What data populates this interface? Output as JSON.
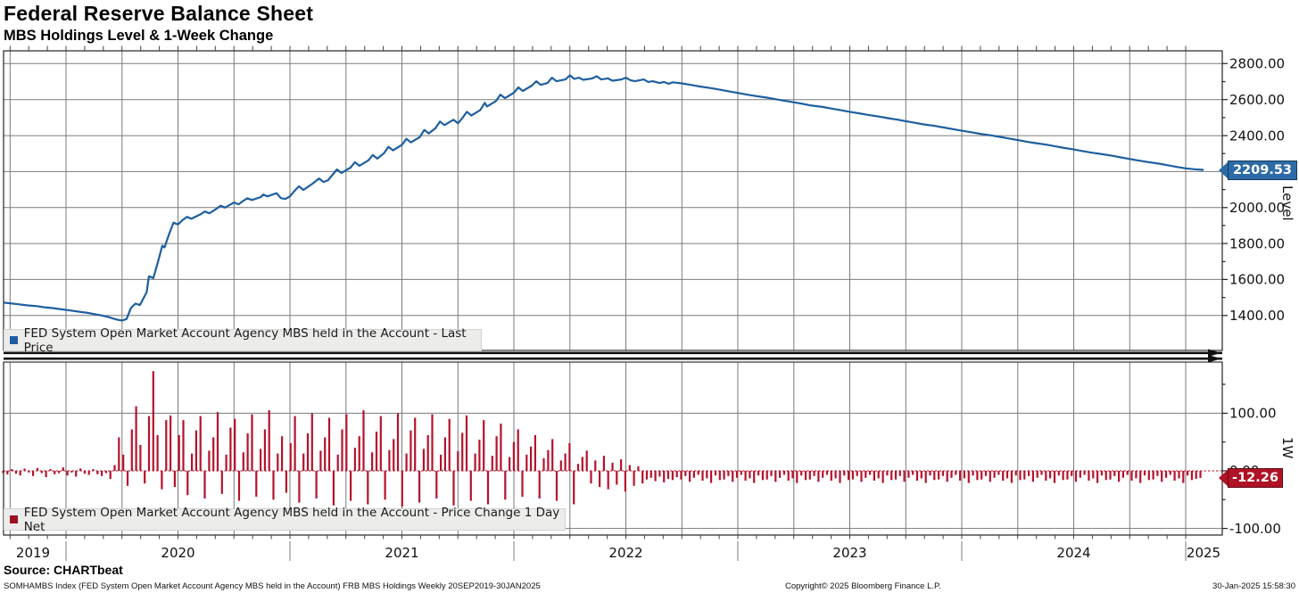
{
  "header": {
    "title": "Federal Reserve Balance Sheet",
    "subtitle": "MBS Holdings Level & 1-Week Change"
  },
  "footer": {
    "source": "Source: CHARTbeat",
    "description": "SOMHAMBS Index (FED System Open Market Account Agency MBS held in the Account) FRB MBS Holdings  Weekly 20SEP2019-30JAN2025",
    "copyright": "Copyright© 2025 Bloomberg Finance L.P.",
    "timestamp": "30-Jan-2025 15:58:30"
  },
  "colors": {
    "line_blue": "#1d5f9f",
    "tag_blue": "#2d6ba6",
    "tag_blue_border": "#123a5c",
    "bar_red": "#b5122b",
    "tag_red": "#b01226",
    "tag_red_border": "#5f0812",
    "grid": "#7a7a7a",
    "axis": "#222222",
    "legend_bg": "#ececeb"
  },
  "xaxis": {
    "labels": [
      "2019",
      "2020",
      "2021",
      "2022",
      "2023",
      "2024",
      "2025"
    ],
    "start_year": 2019.719,
    "end_year": 2025.08
  },
  "chart_data": [
    {
      "type": "line",
      "panel": "level",
      "axis_label": "Level",
      "legend": "FED System Open Market Account Agency MBS held in the Account - Last Price",
      "line_color": "#1d5f9f",
      "last": {
        "label": "2209.53",
        "value": 2209.53
      },
      "ylim": [
        1205,
        2872
      ],
      "yticks": [
        {
          "value": 2800,
          "label": "2800.00"
        },
        {
          "value": 2600,
          "label": "2600.00"
        },
        {
          "value": 2400,
          "label": "2400.00"
        },
        {
          "value": 2200,
          "label": ""
        },
        {
          "value": 2000,
          "label": "2000.00"
        },
        {
          "value": 1800,
          "label": "1800.00"
        },
        {
          "value": 1600,
          "label": "1600.00"
        },
        {
          "value": 1400,
          "label": "1400.00"
        }
      ],
      "points": [
        [
          2019.72,
          1472
        ],
        [
          2019.75,
          1468
        ],
        [
          2019.79,
          1462
        ],
        [
          2019.83,
          1456
        ],
        [
          2019.87,
          1452
        ],
        [
          2019.9,
          1446
        ],
        [
          2019.94,
          1441
        ],
        [
          2019.98,
          1434
        ],
        [
          2020.02,
          1428
        ],
        [
          2020.06,
          1421
        ],
        [
          2020.1,
          1414
        ],
        [
          2020.13,
          1407
        ],
        [
          2020.16,
          1400
        ],
        [
          2020.19,
          1391
        ],
        [
          2020.21,
          1383
        ],
        [
          2020.23,
          1376
        ],
        [
          2020.25,
          1372
        ],
        [
          2020.27,
          1380
        ],
        [
          2020.29,
          1442
        ],
        [
          2020.31,
          1466
        ],
        [
          2020.33,
          1458
        ],
        [
          2020.36,
          1530
        ],
        [
          2020.37,
          1618
        ],
        [
          2020.39,
          1608
        ],
        [
          2020.41,
          1695
        ],
        [
          2020.43,
          1788
        ],
        [
          2020.44,
          1778
        ],
        [
          2020.46,
          1852
        ],
        [
          2020.48,
          1916
        ],
        [
          2020.5,
          1906
        ],
        [
          2020.52,
          1930
        ],
        [
          2020.54,
          1948
        ],
        [
          2020.56,
          1938
        ],
        [
          2020.6,
          1962
        ],
        [
          2020.62,
          1978
        ],
        [
          2020.64,
          1968
        ],
        [
          2020.67,
          1992
        ],
        [
          2020.69,
          2010
        ],
        [
          2020.71,
          2000
        ],
        [
          2020.75,
          2028
        ],
        [
          2020.77,
          2018
        ],
        [
          2020.79,
          2036
        ],
        [
          2020.81,
          2052
        ],
        [
          2020.83,
          2042
        ],
        [
          2020.87,
          2058
        ],
        [
          2020.88,
          2072
        ],
        [
          2020.9,
          2062
        ],
        [
          2020.94,
          2080
        ],
        [
          2020.96,
          2052
        ],
        [
          2020.98,
          2048
        ],
        [
          2021.0,
          2062
        ],
        [
          2021.02,
          2092
        ],
        [
          2021.04,
          2118
        ],
        [
          2021.06,
          2098
        ],
        [
          2021.1,
          2132
        ],
        [
          2021.13,
          2162
        ],
        [
          2021.15,
          2142
        ],
        [
          2021.17,
          2152
        ],
        [
          2021.19,
          2182
        ],
        [
          2021.21,
          2212
        ],
        [
          2021.23,
          2192
        ],
        [
          2021.27,
          2222
        ],
        [
          2021.29,
          2252
        ],
        [
          2021.31,
          2232
        ],
        [
          2021.35,
          2262
        ],
        [
          2021.37,
          2292
        ],
        [
          2021.39,
          2272
        ],
        [
          2021.42,
          2302
        ],
        [
          2021.44,
          2338
        ],
        [
          2021.46,
          2318
        ],
        [
          2021.5,
          2348
        ],
        [
          2021.52,
          2382
        ],
        [
          2021.54,
          2362
        ],
        [
          2021.58,
          2392
        ],
        [
          2021.6,
          2432
        ],
        [
          2021.62,
          2412
        ],
        [
          2021.65,
          2442
        ],
        [
          2021.67,
          2478
        ],
        [
          2021.69,
          2458
        ],
        [
          2021.73,
          2488
        ],
        [
          2021.75,
          2468
        ],
        [
          2021.77,
          2498
        ],
        [
          2021.79,
          2532
        ],
        [
          2021.81,
          2512
        ],
        [
          2021.85,
          2542
        ],
        [
          2021.87,
          2582
        ],
        [
          2021.88,
          2562
        ],
        [
          2021.92,
          2592
        ],
        [
          2021.94,
          2628
        ],
        [
          2021.96,
          2608
        ],
        [
          2022.0,
          2638
        ],
        [
          2022.02,
          2668
        ],
        [
          2022.04,
          2648
        ],
        [
          2022.08,
          2678
        ],
        [
          2022.1,
          2702
        ],
        [
          2022.12,
          2682
        ],
        [
          2022.15,
          2692
        ],
        [
          2022.17,
          2722
        ],
        [
          2022.19,
          2702
        ],
        [
          2022.23,
          2712
        ],
        [
          2022.25,
          2735
        ],
        [
          2022.27,
          2715
        ],
        [
          2022.29,
          2722
        ],
        [
          2022.31,
          2710
        ],
        [
          2022.35,
          2718
        ],
        [
          2022.37,
          2730
        ],
        [
          2022.39,
          2712
        ],
        [
          2022.42,
          2718
        ],
        [
          2022.44,
          2705
        ],
        [
          2022.48,
          2712
        ],
        [
          2022.5,
          2722
        ],
        [
          2022.52,
          2708
        ],
        [
          2022.54,
          2702
        ],
        [
          2022.58,
          2712
        ],
        [
          2022.6,
          2698
        ],
        [
          2022.62,
          2702
        ],
        [
          2022.65,
          2692
        ],
        [
          2022.67,
          2698
        ],
        [
          2022.69,
          2688
        ],
        [
          2022.71,
          2696
        ],
        [
          2022.75,
          2690
        ],
        [
          2022.79,
          2682
        ],
        [
          2022.83,
          2673
        ],
        [
          2022.88,
          2664
        ],
        [
          2022.92,
          2655
        ],
        [
          2022.96,
          2646
        ],
        [
          2023.0,
          2637
        ],
        [
          2023.04,
          2628
        ],
        [
          2023.08,
          2620
        ],
        [
          2023.13,
          2611
        ],
        [
          2023.17,
          2602
        ],
        [
          2023.21,
          2593
        ],
        [
          2023.25,
          2585
        ],
        [
          2023.29,
          2576
        ],
        [
          2023.33,
          2567
        ],
        [
          2023.38,
          2559
        ],
        [
          2023.42,
          2550
        ],
        [
          2023.46,
          2541
        ],
        [
          2023.5,
          2532
        ],
        [
          2023.54,
          2524
        ],
        [
          2023.58,
          2515
        ],
        [
          2023.63,
          2506
        ],
        [
          2023.67,
          2497
        ],
        [
          2023.71,
          2489
        ],
        [
          2023.75,
          2480
        ],
        [
          2023.79,
          2471
        ],
        [
          2023.83,
          2462
        ],
        [
          2023.88,
          2454
        ],
        [
          2023.92,
          2445
        ],
        [
          2023.96,
          2436
        ],
        [
          2024.0,
          2427
        ],
        [
          2024.04,
          2419
        ],
        [
          2024.08,
          2410
        ],
        [
          2024.13,
          2401
        ],
        [
          2024.17,
          2393
        ],
        [
          2024.21,
          2384
        ],
        [
          2024.25,
          2375
        ],
        [
          2024.29,
          2366
        ],
        [
          2024.33,
          2358
        ],
        [
          2024.38,
          2349
        ],
        [
          2024.42,
          2340
        ],
        [
          2024.46,
          2331
        ],
        [
          2024.5,
          2323
        ],
        [
          2024.54,
          2314
        ],
        [
          2024.58,
          2305
        ],
        [
          2024.63,
          2296
        ],
        [
          2024.67,
          2288
        ],
        [
          2024.71,
          2279
        ],
        [
          2024.75,
          2270
        ],
        [
          2024.79,
          2261
        ],
        [
          2024.83,
          2253
        ],
        [
          2024.88,
          2244
        ],
        [
          2024.92,
          2235
        ],
        [
          2024.96,
          2226
        ],
        [
          2025.0,
          2218
        ],
        [
          2025.04,
          2213
        ],
        [
          2025.08,
          2209.53
        ]
      ]
    },
    {
      "type": "bar",
      "panel": "one_week_change",
      "axis_label": "1W",
      "legend": "FED System Open Market Account Agency MBS held in the Account - Price Change 1 Day Net",
      "bar_color": "#b5122b",
      "last": {
        "label": "-12.26",
        "value": -12.26
      },
      "ylim": [
        -112,
        189
      ],
      "yticks": [
        {
          "value": 100,
          "label": "100.00"
        },
        {
          "value": 0,
          "label": "0.00"
        },
        {
          "value": -100,
          "label": "-100.00"
        }
      ],
      "zero_line": {
        "style": "dashed",
        "color": "#b01226"
      },
      "start_year": 2019.719,
      "weekly_step_years": 0.019164,
      "values": [
        -4,
        -6,
        3,
        -5,
        -8,
        4,
        -3,
        -9,
        5,
        -4,
        -11,
        3,
        -6,
        -4,
        6,
        -8,
        -3,
        -10,
        4,
        -5,
        -7,
        3,
        -6,
        -9,
        -4,
        -14,
        10,
        58,
        28,
        -26,
        72,
        112,
        45,
        -22,
        95,
        173,
        62,
        -32,
        88,
        96,
        -28,
        62,
        88,
        -42,
        30,
        70,
        95,
        -48,
        35,
        58,
        102,
        -40,
        28,
        75,
        90,
        -52,
        32,
        65,
        98,
        -45,
        38,
        72,
        105,
        -50,
        30,
        60,
        -38,
        48,
        95,
        -55,
        30,
        65,
        100,
        -48,
        35,
        58,
        92,
        -60,
        28,
        72,
        98,
        -52,
        40,
        60,
        105,
        -58,
        32,
        68,
        95,
        -50,
        36,
        55,
        100,
        -62,
        30,
        70,
        92,
        -55,
        38,
        62,
        98,
        -48,
        28,
        58,
        90,
        -60,
        34,
        66,
        96,
        -52,
        30,
        54,
        88,
        -58,
        26,
        60,
        82,
        -50,
        24,
        50,
        72,
        -45,
        28,
        42,
        62,
        -48,
        22,
        36,
        55,
        -52,
        18,
        30,
        48,
        -58,
        12,
        24,
        35,
        -22,
        18,
        -28,
        26,
        -32,
        14,
        -24,
        20,
        -36,
        10,
        -26,
        8,
        -22,
        -15,
        -12,
        -18,
        -10,
        -20,
        -14,
        -16,
        -11,
        -15,
        -9,
        -19,
        -12,
        -7,
        -17,
        -13,
        -21,
        -8,
        -16,
        -15,
        -9,
        -19,
        -12,
        -7,
        -17,
        -13,
        -21,
        -8,
        -16,
        -15,
        -9,
        -19,
        -12,
        -7,
        -17,
        -13,
        -21,
        -8,
        -16,
        -15,
        -9,
        -19,
        -12,
        -7,
        -17,
        -13,
        -21,
        -8,
        -16,
        -15,
        -9,
        -19,
        -12,
        -7,
        -17,
        -13,
        -21,
        -8,
        -16,
        -15,
        -9,
        -19,
        -12,
        -7,
        -17,
        -13,
        -21,
        -8,
        -16,
        -15,
        -9,
        -19,
        -12,
        -7,
        -17,
        -13,
        -21,
        -8,
        -16,
        -15,
        -9,
        -19,
        -12,
        -7,
        -17,
        -13,
        -21,
        -8,
        -16,
        -15,
        -9,
        -19,
        -12,
        -7,
        -17,
        -13,
        -21,
        -8,
        -16,
        -15,
        -9,
        -19,
        -12,
        -7,
        -17,
        -13,
        -21,
        -8,
        -16,
        -15,
        -9,
        -19,
        -12,
        -7,
        -17,
        -13,
        -21,
        -8,
        -16,
        -15,
        -9,
        -19,
        -12,
        -7,
        -17,
        -13,
        -21,
        -8,
        -16,
        -14,
        -12.26
      ]
    }
  ]
}
